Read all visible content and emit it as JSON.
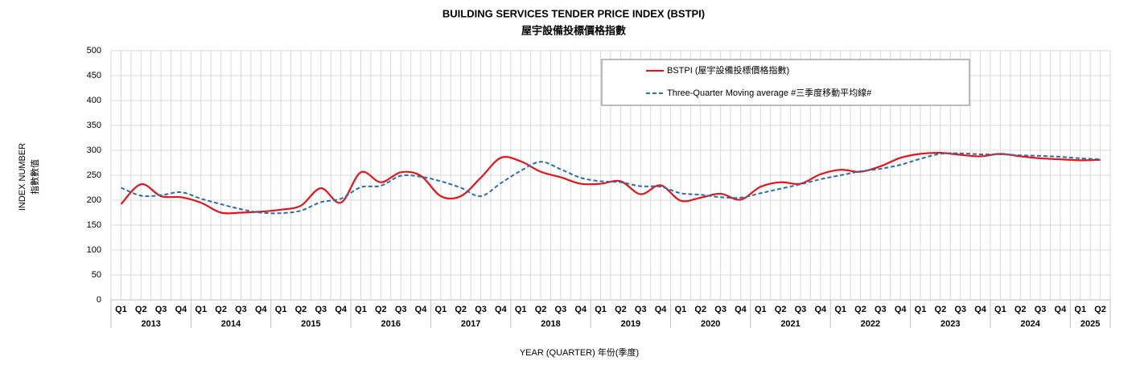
{
  "chart_data": {
    "type": "line",
    "title": "BUILDING SERVICES TENDER PRICE INDEX (BSTPI)",
    "subtitle": "屋宇設備投標價格指數",
    "ylabel": [
      "INDEX NUMBER",
      "指數數值"
    ],
    "xlabel": "YEAR (QUARTER) 年份(季度)",
    "categories": [
      "Q1",
      "Q2",
      "Q3",
      "Q4",
      "Q1",
      "Q2",
      "Q3",
      "Q4",
      "Q1",
      "Q2",
      "Q3",
      "Q4",
      "Q1",
      "Q2",
      "Q3",
      "Q4",
      "Q1",
      "Q2",
      "Q3",
      "Q4",
      "Q1",
      "Q2",
      "Q3",
      "Q4",
      "Q1",
      "Q2",
      "Q3",
      "Q4",
      "Q1",
      "Q2",
      "Q3",
      "Q4",
      "Q1",
      "Q2",
      "Q3",
      "Q4",
      "Q1",
      "Q2",
      "Q3",
      "Q4",
      "Q1",
      "Q2",
      "Q3",
      "Q4",
      "Q1",
      "Q2",
      "Q3",
      "Q4",
      "Q1",
      "Q2"
    ],
    "years": [
      "2013",
      "2014",
      "2015",
      "2016",
      "2017",
      "2018",
      "2019",
      "2020",
      "2021",
      "2022",
      "2023",
      "2024",
      "2025"
    ],
    "series": [
      {
        "name": "BSTPI (屋宇設備投標價格指數)",
        "color": "#e3141b",
        "style": "solid",
        "values": [
          192,
          232,
          208,
          206,
          195,
          175,
          175,
          177,
          181,
          189,
          224,
          195,
          256,
          236,
          256,
          249,
          208,
          208,
          245,
          285,
          278,
          257,
          246,
          233,
          233,
          238,
          212,
          230,
          199,
          205,
          213,
          201,
          227,
          236,
          233,
          252,
          261,
          257,
          268,
          285,
          293,
          295,
          291,
          288,
          293,
          288,
          284,
          282,
          280,
          281
        ]
      },
      {
        "name": "Three-Quarter Moving average #三季度移動平均線#",
        "color": "#2e6ea6",
        "style": "dashed",
        "values": [
          225,
          209,
          210,
          216,
          203,
          192,
          182,
          175,
          174,
          179,
          196,
          203,
          226,
          229,
          249,
          247,
          238,
          225,
          208,
          234,
          259,
          277,
          262,
          245,
          238,
          236,
          228,
          227,
          214,
          211,
          206,
          205,
          214,
          223,
          232,
          242,
          250,
          258,
          263,
          271,
          283,
          293,
          294,
          292,
          292,
          290,
          289,
          287,
          284,
          282
        ]
      }
    ],
    "ylim": [
      0,
      500
    ],
    "yticks": [
      0,
      50,
      100,
      150,
      200,
      250,
      300,
      350,
      400,
      450,
      500
    ],
    "grid": true,
    "legend": "top-right"
  }
}
